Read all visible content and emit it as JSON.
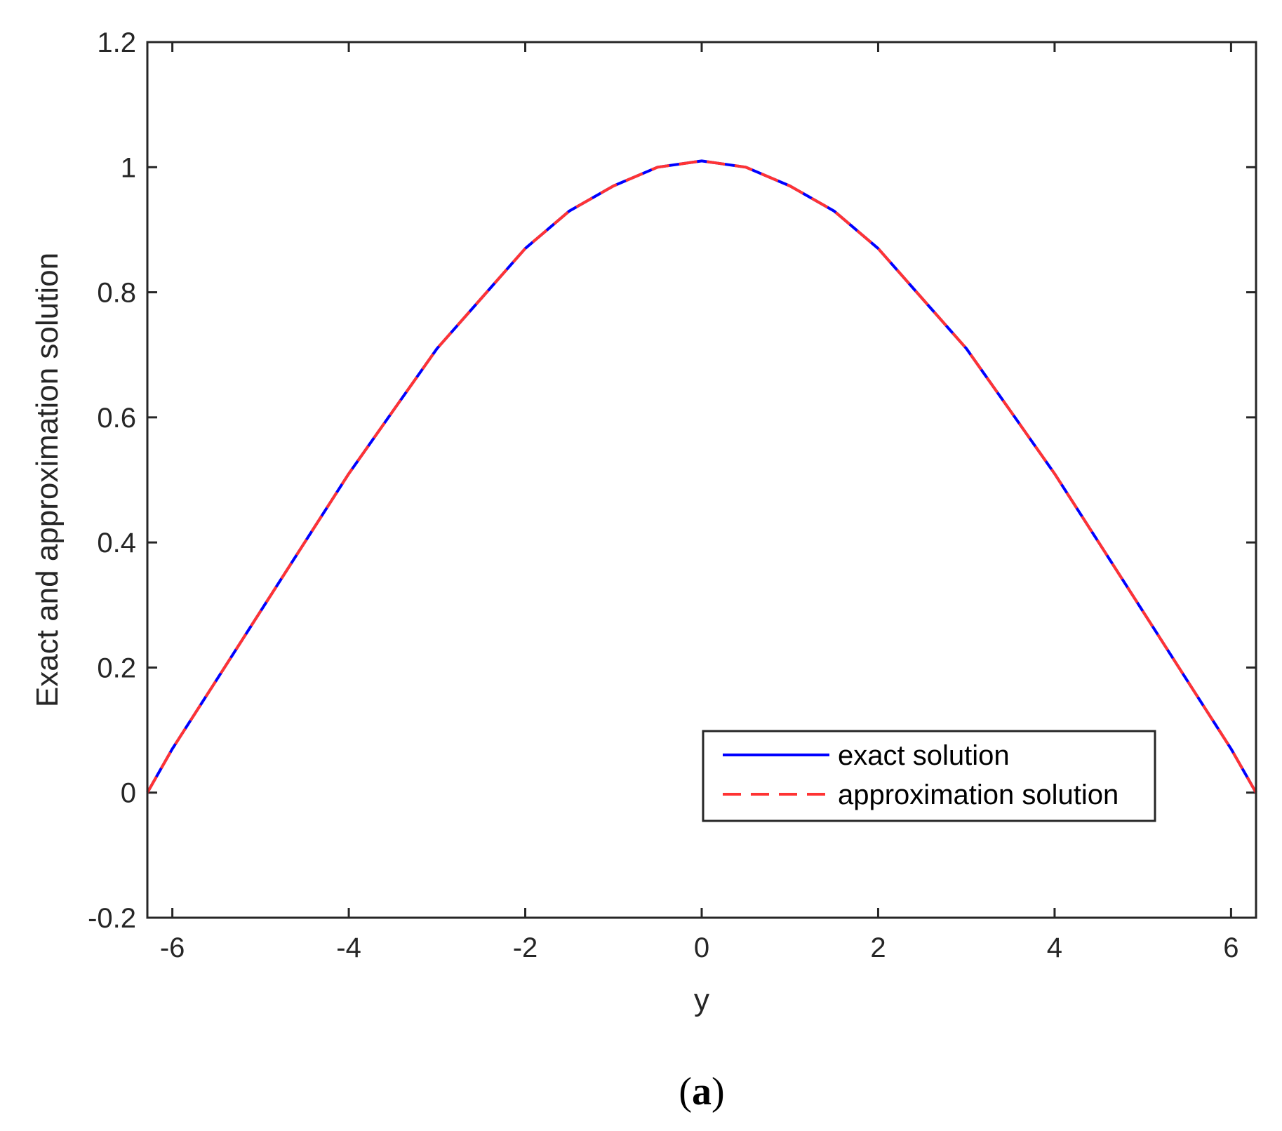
{
  "chart_data": {
    "type": "line",
    "xlabel": "y",
    "ylabel": "Exact and approximation solution",
    "xlim": [
      -6.2832,
      6.2832
    ],
    "ylim": [
      -0.2,
      1.2
    ],
    "xticks": [
      -6,
      -4,
      -2,
      0,
      2,
      4,
      6
    ],
    "yticks": [
      -0.2,
      0,
      0.2,
      0.4,
      0.6,
      0.8,
      1,
      1.2
    ],
    "xtick_labels": [
      "-6",
      "-4",
      "-2",
      "0",
      "2",
      "4",
      "6"
    ],
    "ytick_labels": [
      "-0.2",
      "0",
      "0.2",
      "0.4",
      "0.6",
      "0.8",
      "1",
      "1.2"
    ],
    "grid": false,
    "legend_position": "bottom-right",
    "series": [
      {
        "name": "exact solution",
        "color": "#0000ff",
        "style": "solid",
        "x": [
          -6.2832,
          -6,
          -5.5,
          -5,
          -4.5,
          -4,
          -3.5,
          -3,
          -2.5,
          -2,
          -1.5,
          -1,
          -0.5,
          0,
          0.5,
          1,
          1.5,
          2,
          2.5,
          3,
          3.5,
          4,
          4.5,
          5,
          5.5,
          6,
          6.2832
        ],
        "y": [
          0,
          0.07,
          0.18,
          0.29,
          0.4,
          0.51,
          0.61,
          0.71,
          0.79,
          0.87,
          0.93,
          0.97,
          1.0,
          1.01,
          1.0,
          0.97,
          0.93,
          0.87,
          0.79,
          0.71,
          0.61,
          0.51,
          0.4,
          0.29,
          0.18,
          0.07,
          0
        ]
      },
      {
        "name": "approximation solution",
        "color": "#ff3333",
        "style": "dashed",
        "x": [
          -6.2832,
          -6,
          -5.5,
          -5,
          -4.5,
          -4,
          -3.5,
          -3,
          -2.5,
          -2,
          -1.5,
          -1,
          -0.5,
          0,
          0.5,
          1,
          1.5,
          2,
          2.5,
          3,
          3.5,
          4,
          4.5,
          5,
          5.5,
          6,
          6.2832
        ],
        "y": [
          0,
          0.07,
          0.18,
          0.29,
          0.4,
          0.51,
          0.61,
          0.71,
          0.79,
          0.87,
          0.93,
          0.97,
          1.0,
          1.01,
          1.0,
          0.97,
          0.93,
          0.87,
          0.79,
          0.71,
          0.61,
          0.51,
          0.4,
          0.29,
          0.18,
          0.07,
          0
        ]
      }
    ]
  },
  "caption": {
    "open": "(",
    "letter": "a",
    "close": ")"
  }
}
